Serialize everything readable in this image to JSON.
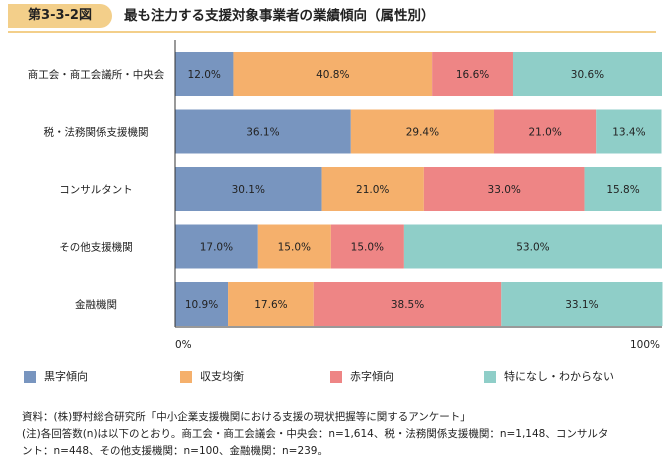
{
  "figure": {
    "number": "第3-3-2図",
    "title": "最も注力する支援対象事業者の業績傾向（属性別）"
  },
  "chart_data": {
    "type": "bar",
    "orientation": "horizontal",
    "stacked": true,
    "categories": [
      "商工会・商工会議所・中央会",
      "税・法務関係支援機関",
      "コンサルタント",
      "その他支援機関",
      "金融機関"
    ],
    "series": [
      {
        "name": "黒字傾向",
        "color": "#7895bf",
        "values": [
          12.0,
          36.1,
          30.1,
          17.0,
          10.9
        ],
        "labels": [
          "12.0%",
          "36.1%",
          "30.1%",
          "17.0%",
          "10.9%"
        ]
      },
      {
        "name": "収支均衡",
        "color": "#f5b06c",
        "values": [
          40.8,
          29.4,
          21.0,
          15.0,
          17.6
        ],
        "labels": [
          "40.8%",
          "29.4%",
          "21.0%",
          "15.0%",
          "17.6%"
        ]
      },
      {
        "name": "赤字傾向",
        "color": "#ee8585",
        "values": [
          16.6,
          21.0,
          33.0,
          15.0,
          38.5
        ],
        "labels": [
          "16.6%",
          "21.0%",
          "33.0%",
          "15.0%",
          "38.5%"
        ]
      },
      {
        "name": "特になし・わからない",
        "color": "#8fcec8",
        "values": [
          30.6,
          13.4,
          15.8,
          53.0,
          33.1
        ],
        "labels": [
          "30.6%",
          "13.4%",
          "15.8%",
          "53.0%",
          "33.1%"
        ]
      }
    ],
    "xlim": [
      0,
      100
    ],
    "x_tick_labels": [
      "0%",
      "100%"
    ],
    "grid": false,
    "legend_position": "bottom"
  },
  "notes": {
    "source": "資料：(株)野村総合研究所「中小企業支援機関における支援の現状把握等に関するアンケート」",
    "note_line1": "(注)各回答数(n)は以下のとおり。商工会・商工会議会・中央会：n=1,614、税・法務関係支援機関：n=1,148、コンサルタ",
    "note_line2": "ント：n=448、その他支援機関：n=100、金融機関：n=239。"
  }
}
